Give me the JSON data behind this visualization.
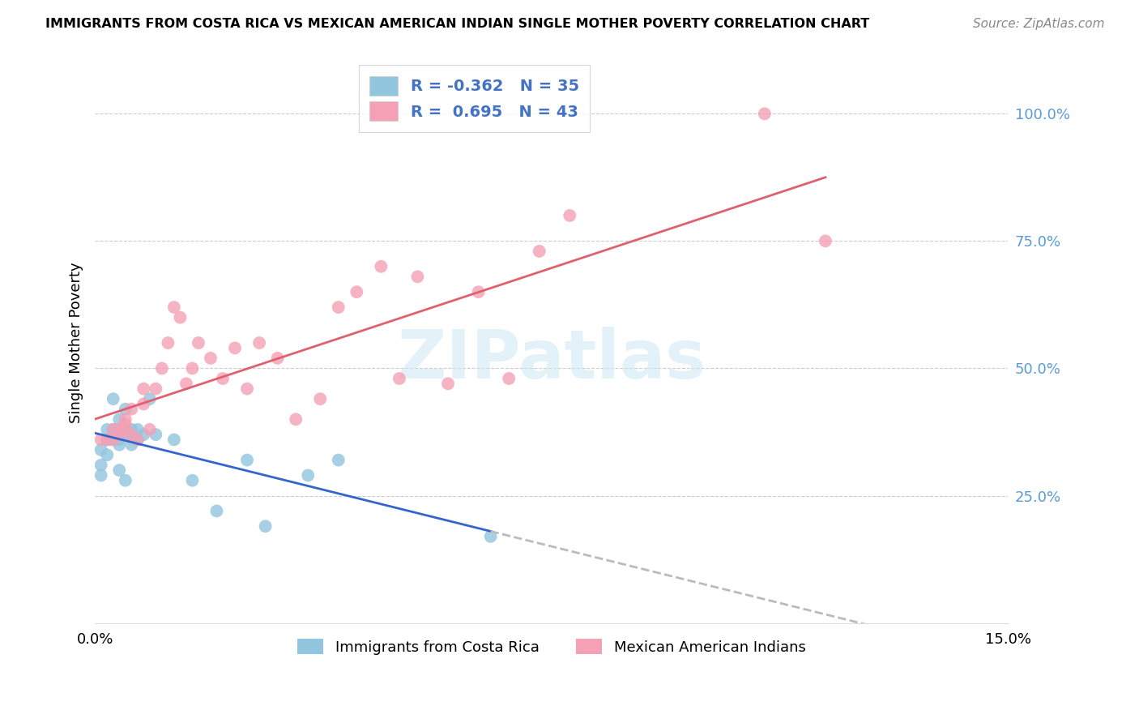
{
  "title": "IMMIGRANTS FROM COSTA RICA VS MEXICAN AMERICAN INDIAN SINGLE MOTHER POVERTY CORRELATION CHART",
  "source": "Source: ZipAtlas.com",
  "ylabel": "Single Mother Poverty",
  "ytick_labels_right": [
    "25.0%",
    "50.0%",
    "75.0%",
    "100.0%"
  ],
  "ytick_values": [
    0.25,
    0.5,
    0.75,
    1.0
  ],
  "xlim": [
    0.0,
    0.15
  ],
  "ylim": [
    0.0,
    1.1
  ],
  "legend_label1": "Immigrants from Costa Rica",
  "legend_label2": "Mexican American Indians",
  "R1": "-0.362",
  "N1": "35",
  "R2": "0.695",
  "N2": "43",
  "color_blue": "#92c5de",
  "color_pink": "#f4a0b5",
  "color_blue_line": "#3366cc",
  "color_pink_line": "#e06070",
  "color_dashed": "#bbbbbb",
  "watermark": "ZIPatlas",
  "blue_x": [
    0.001,
    0.001,
    0.001,
    0.002,
    0.002,
    0.002,
    0.003,
    0.003,
    0.003,
    0.003,
    0.004,
    0.004,
    0.004,
    0.004,
    0.004,
    0.005,
    0.005,
    0.005,
    0.005,
    0.006,
    0.006,
    0.006,
    0.007,
    0.007,
    0.008,
    0.009,
    0.01,
    0.013,
    0.016,
    0.02,
    0.025,
    0.028,
    0.035,
    0.04,
    0.065
  ],
  "blue_y": [
    0.34,
    0.31,
    0.29,
    0.38,
    0.36,
    0.33,
    0.38,
    0.36,
    0.38,
    0.44,
    0.4,
    0.38,
    0.36,
    0.35,
    0.3,
    0.42,
    0.38,
    0.37,
    0.28,
    0.38,
    0.37,
    0.35,
    0.38,
    0.36,
    0.37,
    0.44,
    0.37,
    0.36,
    0.28,
    0.22,
    0.32,
    0.19,
    0.29,
    0.32,
    0.17
  ],
  "pink_x": [
    0.001,
    0.002,
    0.003,
    0.003,
    0.004,
    0.004,
    0.005,
    0.005,
    0.005,
    0.006,
    0.006,
    0.007,
    0.008,
    0.008,
    0.009,
    0.01,
    0.011,
    0.012,
    0.013,
    0.014,
    0.015,
    0.016,
    0.017,
    0.019,
    0.021,
    0.023,
    0.025,
    0.027,
    0.03,
    0.033,
    0.037,
    0.04,
    0.043,
    0.047,
    0.05,
    0.053,
    0.058,
    0.063,
    0.068,
    0.073,
    0.078,
    0.11,
    0.12
  ],
  "pink_y": [
    0.36,
    0.36,
    0.36,
    0.38,
    0.37,
    0.38,
    0.4,
    0.38,
    0.39,
    0.37,
    0.42,
    0.36,
    0.43,
    0.46,
    0.38,
    0.46,
    0.5,
    0.55,
    0.62,
    0.6,
    0.47,
    0.5,
    0.55,
    0.52,
    0.48,
    0.54,
    0.46,
    0.55,
    0.52,
    0.4,
    0.44,
    0.62,
    0.65,
    0.7,
    0.48,
    0.68,
    0.47,
    0.65,
    0.48,
    0.73,
    0.8,
    1.0,
    0.75
  ]
}
